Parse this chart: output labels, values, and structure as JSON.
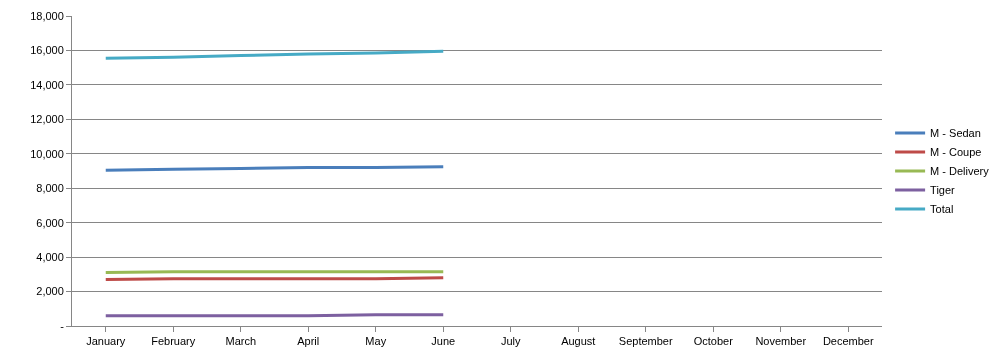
{
  "chart_data": {
    "type": "line",
    "categories": [
      "January",
      "February",
      "March",
      "April",
      "May",
      "June",
      "July",
      "August",
      "September",
      "October",
      "November",
      "December"
    ],
    "series": [
      {
        "name": "M - Sedan",
        "color": "#4a7ebb",
        "values": [
          9050,
          9100,
          9150,
          9200,
          9200,
          9250,
          null,
          null,
          null,
          null,
          null,
          null
        ]
      },
      {
        "name": "M - Coupe",
        "color": "#be4b48",
        "values": [
          2700,
          2750,
          2750,
          2750,
          2750,
          2800,
          null,
          null,
          null,
          null,
          null,
          null
        ]
      },
      {
        "name": "M - Delivery",
        "color": "#98b954",
        "values": [
          3100,
          3150,
          3150,
          3150,
          3150,
          3150,
          null,
          null,
          null,
          null,
          null,
          null
        ]
      },
      {
        "name": "Tiger",
        "color": "#7d60a0",
        "values": [
          600,
          600,
          600,
          600,
          650,
          650,
          null,
          null,
          null,
          null,
          null,
          null
        ]
      },
      {
        "name": "Total",
        "color": "#46aac5",
        "values": [
          15550,
          15600,
          15700,
          15800,
          15850,
          15950,
          null,
          null,
          null,
          null,
          null,
          null
        ]
      }
    ],
    "ylim": [
      0,
      18000
    ],
    "yticks": [
      {
        "value": 0,
        "label": "-"
      },
      {
        "value": 2000,
        "label": "2,000"
      },
      {
        "value": 4000,
        "label": "4,000"
      },
      {
        "value": 6000,
        "label": "6,000"
      },
      {
        "value": 8000,
        "label": "8,000"
      },
      {
        "value": 10000,
        "label": "10,000"
      },
      {
        "value": 12000,
        "label": "12,000"
      },
      {
        "value": 14000,
        "label": "14,000"
      },
      {
        "value": 16000,
        "label": "16,000"
      },
      {
        "value": 18000,
        "label": "18,000"
      }
    ],
    "grid": "y",
    "legend": "right",
    "marker": "none",
    "line_style": "solid"
  }
}
